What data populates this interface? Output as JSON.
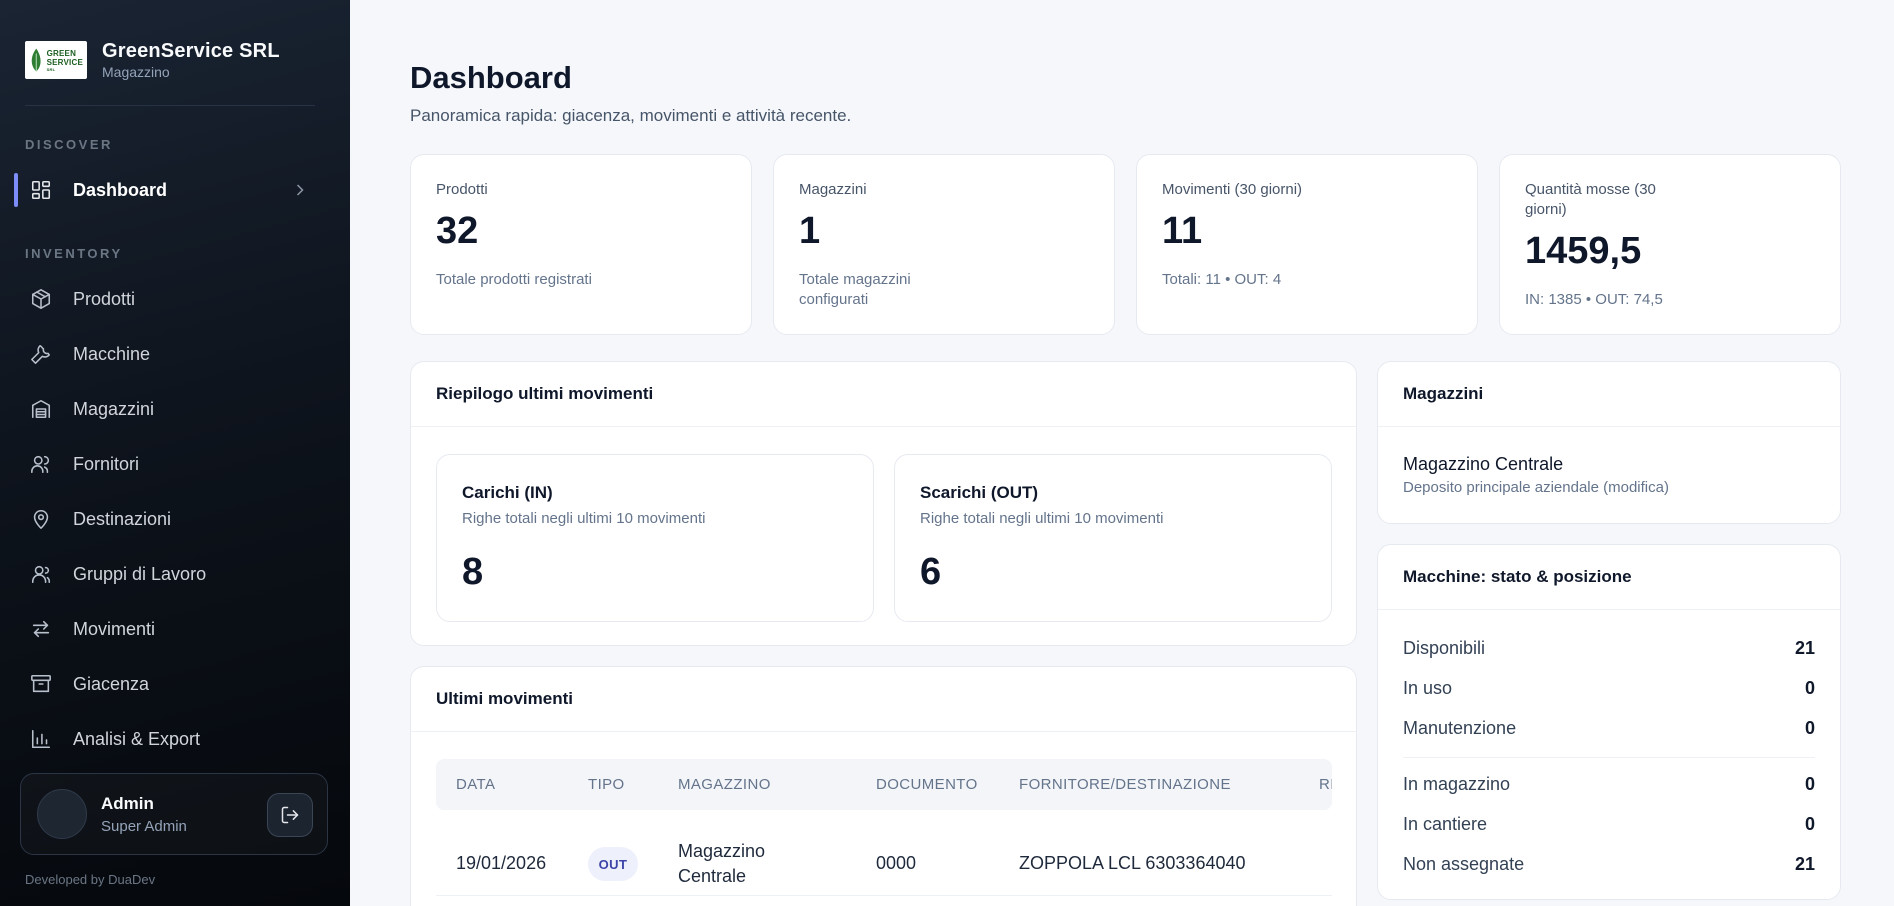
{
  "brand": {
    "name": "GreenService SRL",
    "subtitle": "Magazzino",
    "logo_text_1": "GREEN",
    "logo_text_2": "SERVICE",
    "logo_text_3": "SRL"
  },
  "sidebar": {
    "section_discover": "DISCOVER",
    "section_inventory": "INVENTORY",
    "items": [
      {
        "label": "Dashboard",
        "icon": "dashboard-grid-icon",
        "active": true
      },
      {
        "label": "Prodotti",
        "icon": "box-icon"
      },
      {
        "label": "Macchine",
        "icon": "wrench-icon"
      },
      {
        "label": "Magazzini",
        "icon": "warehouse-icon"
      },
      {
        "label": "Fornitori",
        "icon": "users-icon"
      },
      {
        "label": "Destinazioni",
        "icon": "map-pin-icon"
      },
      {
        "label": "Gruppi di Lavoro",
        "icon": "user-group-icon"
      },
      {
        "label": "Movimenti",
        "icon": "arrows-exchange-icon"
      },
      {
        "label": "Giacenza",
        "icon": "archive-icon"
      },
      {
        "label": "Analisi & Export",
        "icon": "bar-chart-icon"
      }
    ],
    "user": {
      "name": "Admin",
      "role": "Super Admin"
    },
    "credit": "Developed by DuaDev"
  },
  "header": {
    "title": "Dashboard",
    "subtitle": "Panoramica rapida: giacenza, movimenti e attività recente."
  },
  "stats": [
    {
      "label": "Prodotti",
      "value": "32",
      "foot": "Totale prodotti registrati"
    },
    {
      "label": "Magazzini",
      "value": "1",
      "foot_line1": "Totale magazzini",
      "foot_line2": "configurati"
    },
    {
      "label": "Movimenti (30 giorni)",
      "value": "11",
      "foot": "Totali: 11 • OUT: 4"
    },
    {
      "label_line1": "Quantità mosse (30",
      "label_line2": "giorni)",
      "value": "1459,5",
      "foot": "IN: 1385 • OUT: 74,5"
    }
  ],
  "summary": {
    "title": "Riepilogo ultimi movimenti",
    "in": {
      "title": "Carichi (IN)",
      "desc": "Righe totali negli ultimi 10 movimenti",
      "value": "8"
    },
    "out": {
      "title": "Scarichi (OUT)",
      "desc": "Righe totali negli ultimi 10 movimenti",
      "value": "6"
    }
  },
  "recent": {
    "title": "Ultimi movimenti",
    "columns": [
      "DATA",
      "TIPO",
      "MAGAZZINO",
      "DOCUMENTO",
      "FORNITORE/DESTINAZIONE",
      "RI"
    ],
    "rows": [
      {
        "data": "19/01/2026",
        "tipo": "OUT",
        "magazzino_line1": "Magazzino",
        "magazzino_line2": "Centrale",
        "documento": "0000",
        "fornitore": "ZOPPOLA LCL 6303364040"
      }
    ]
  },
  "warehouses": {
    "title": "Magazzini",
    "items": [
      {
        "name": "Magazzino Centrale",
        "desc": "Deposito principale aziendale (modifica)"
      }
    ]
  },
  "machines": {
    "title": "Macchine: stato & posizione",
    "status": [
      {
        "label": "Disponibili",
        "value": "21"
      },
      {
        "label": "In uso",
        "value": "0"
      },
      {
        "label": "Manutenzione",
        "value": "0"
      }
    ],
    "position": [
      {
        "label": "In magazzino",
        "value": "0"
      },
      {
        "label": "In cantiere",
        "value": "0"
      },
      {
        "label": "Non assegnate",
        "value": "21"
      }
    ]
  },
  "colors": {
    "sidebar_bg": "#0e141d",
    "accent": "#7c8cf8",
    "page_bg": "#f5f7fb",
    "pill_bg": "#eef0fb",
    "pill_text": "#3c44a8"
  }
}
